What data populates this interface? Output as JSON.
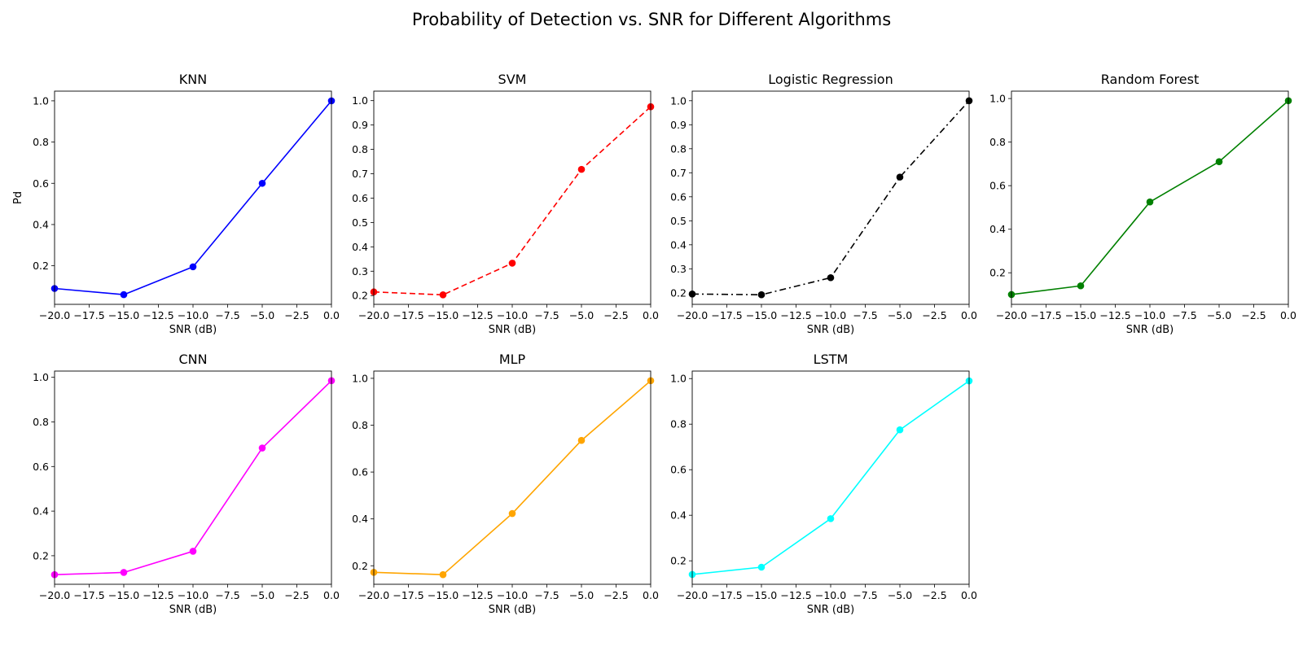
{
  "figure": {
    "title": "Probability of Detection vs. SNR for Different Algorithms"
  },
  "chart_data": [
    {
      "type": "line",
      "title": "KNN",
      "xlabel": "SNR (dB)",
      "ylabel": "Pd",
      "x": [
        -20,
        -15,
        -10,
        -5,
        0
      ],
      "series": [
        {
          "values": [
            0.09,
            0.06,
            0.195,
            0.6,
            1.0
          ],
          "color": "#0000ff",
          "linestyle": "solid",
          "marker": "circle"
        }
      ],
      "xlim": [
        -20,
        0
      ],
      "ylim": [
        0.013,
        1.047
      ],
      "xticks": [
        -20,
        -17.5,
        -15,
        -12.5,
        -10,
        -7.5,
        -5,
        -2.5,
        0
      ],
      "xtick_labels": [
        "−20.0",
        "−17.5",
        "−15.0",
        "−12.5",
        "−10.0",
        "−7.5",
        "−5.0",
        "−2.5",
        "0.0"
      ],
      "yticks": [
        0.2,
        0.4,
        0.6,
        0.8,
        1.0
      ],
      "ytick_labels": [
        "0.2",
        "0.4",
        "0.6",
        "0.8",
        "1.0"
      ],
      "grid": false
    },
    {
      "type": "line",
      "title": "SVM",
      "xlabel": "SNR (dB)",
      "ylabel": "",
      "x": [
        -20,
        -15,
        -10,
        -5,
        0
      ],
      "series": [
        {
          "values": [
            0.215,
            0.203,
            0.333,
            0.718,
            0.975
          ],
          "color": "#ff0000",
          "linestyle": "dashed",
          "marker": "circle"
        }
      ],
      "xlim": [
        -20,
        0
      ],
      "ylim": [
        0.164,
        1.039
      ],
      "xticks": [
        -20,
        -17.5,
        -15,
        -12.5,
        -10,
        -7.5,
        -5,
        -2.5,
        0
      ],
      "xtick_labels": [
        "−20.0",
        "−17.5",
        "−15.0",
        "−12.5",
        "−10.0",
        "−7.5",
        "−5.0",
        "−2.5",
        "0.0"
      ],
      "yticks": [
        0.2,
        0.3,
        0.4,
        0.5,
        0.6,
        0.7,
        0.8,
        0.9,
        1.0
      ],
      "ytick_labels": [
        "0.2",
        "0.3",
        "0.4",
        "0.5",
        "0.6",
        "0.7",
        "0.8",
        "0.9",
        "1.0"
      ],
      "grid": false
    },
    {
      "type": "line",
      "title": "Logistic Regression",
      "xlabel": "SNR (dB)",
      "ylabel": "",
      "x": [
        -20,
        -15,
        -10,
        -5,
        0
      ],
      "series": [
        {
          "values": [
            0.195,
            0.192,
            0.263,
            0.682,
            1.0
          ],
          "color": "#000000",
          "linestyle": "dashdot",
          "marker": "circle"
        }
      ],
      "xlim": [
        -20,
        0
      ],
      "ylim": [
        0.152,
        1.04
      ],
      "xticks": [
        -20,
        -17.5,
        -15,
        -12.5,
        -10,
        -7.5,
        -5,
        -2.5,
        0
      ],
      "xtick_labels": [
        "−20.0",
        "−17.5",
        "−15.0",
        "−12.5",
        "−10.0",
        "−7.5",
        "−5.0",
        "−2.5",
        "0.0"
      ],
      "yticks": [
        0.2,
        0.3,
        0.4,
        0.5,
        0.6,
        0.7,
        0.8,
        0.9,
        1.0
      ],
      "ytick_labels": [
        "0.2",
        "0.3",
        "0.4",
        "0.5",
        "0.6",
        "0.7",
        "0.8",
        "0.9",
        "1.0"
      ],
      "grid": false
    },
    {
      "type": "line",
      "title": "Random Forest",
      "xlabel": "SNR (dB)",
      "ylabel": "",
      "x": [
        -20,
        -15,
        -10,
        -5,
        0
      ],
      "series": [
        {
          "values": [
            0.1,
            0.14,
            0.525,
            0.71,
            0.99
          ],
          "color": "#008000",
          "linestyle": "solid",
          "marker": "circle"
        }
      ],
      "xlim": [
        -20,
        0
      ],
      "ylim": [
        0.055,
        1.034
      ],
      "xticks": [
        -20,
        -17.5,
        -15,
        -12.5,
        -10,
        -7.5,
        -5,
        -2.5,
        0
      ],
      "xtick_labels": [
        "−20.0",
        "−17.5",
        "−15.0",
        "−12.5",
        "−10.0",
        "−7.5",
        "−5.0",
        "−2.5",
        "0.0"
      ],
      "yticks": [
        0.2,
        0.4,
        0.6,
        0.8,
        1.0
      ],
      "ytick_labels": [
        "0.2",
        "0.4",
        "0.6",
        "0.8",
        "1.0"
      ],
      "grid": false
    },
    {
      "type": "line",
      "title": "CNN",
      "xlabel": "SNR (dB)",
      "ylabel": "",
      "x": [
        -20,
        -15,
        -10,
        -5,
        0
      ],
      "series": [
        {
          "values": [
            0.115,
            0.125,
            0.22,
            0.683,
            0.985
          ],
          "color": "#ff00ff",
          "linestyle": "solid",
          "marker": "circle"
        }
      ],
      "xlim": [
        -20,
        0
      ],
      "ylim": [
        0.072,
        1.028
      ],
      "xticks": [
        -20,
        -17.5,
        -15,
        -12.5,
        -10,
        -7.5,
        -5,
        -2.5,
        0
      ],
      "xtick_labels": [
        "−20.0",
        "−17.5",
        "−15.0",
        "−12.5",
        "−10.0",
        "−7.5",
        "−5.0",
        "−2.5",
        "0.0"
      ],
      "yticks": [
        0.2,
        0.4,
        0.6,
        0.8,
        1.0
      ],
      "ytick_labels": [
        "0.2",
        "0.4",
        "0.6",
        "0.8",
        "1.0"
      ],
      "grid": false
    },
    {
      "type": "line",
      "title": "MLP",
      "xlabel": "SNR (dB)",
      "ylabel": "",
      "x": [
        -20,
        -15,
        -10,
        -5,
        0
      ],
      "series": [
        {
          "values": [
            0.172,
            0.162,
            0.423,
            0.735,
            0.99
          ],
          "color": "#ffa500",
          "linestyle": "solid",
          "marker": "circle"
        }
      ],
      "xlim": [
        -20,
        0
      ],
      "ylim": [
        0.121,
        1.031
      ],
      "xticks": [
        -20,
        -17.5,
        -15,
        -12.5,
        -10,
        -7.5,
        -5,
        -2.5,
        0
      ],
      "xtick_labels": [
        "−20.0",
        "−17.5",
        "−15.0",
        "−12.5",
        "−10.0",
        "−7.5",
        "−5.0",
        "−2.5",
        "0.0"
      ],
      "yticks": [
        0.2,
        0.4,
        0.6,
        0.8,
        1.0
      ],
      "ytick_labels": [
        "0.2",
        "0.4",
        "0.6",
        "0.8",
        "1.0"
      ],
      "grid": false
    },
    {
      "type": "line",
      "title": "LSTM",
      "xlabel": "SNR (dB)",
      "ylabel": "",
      "x": [
        -20,
        -15,
        -10,
        -5,
        0
      ],
      "series": [
        {
          "values": [
            0.14,
            0.172,
            0.385,
            0.775,
            0.99
          ],
          "color": "#00ffff",
          "linestyle": "solid",
          "marker": "circle"
        }
      ],
      "xlim": [
        -20,
        0
      ],
      "ylim": [
        0.097,
        1.033
      ],
      "xticks": [
        -20,
        -17.5,
        -15,
        -12.5,
        -10,
        -7.5,
        -5,
        -2.5,
        0
      ],
      "xtick_labels": [
        "−20.0",
        "−17.5",
        "−15.0",
        "−12.5",
        "−10.0",
        "−7.5",
        "−5.0",
        "−2.5",
        "0.0"
      ],
      "yticks": [
        0.2,
        0.4,
        0.6,
        0.8,
        1.0
      ],
      "ytick_labels": [
        "0.2",
        "0.4",
        "0.6",
        "0.8",
        "1.0"
      ],
      "grid": false
    }
  ]
}
